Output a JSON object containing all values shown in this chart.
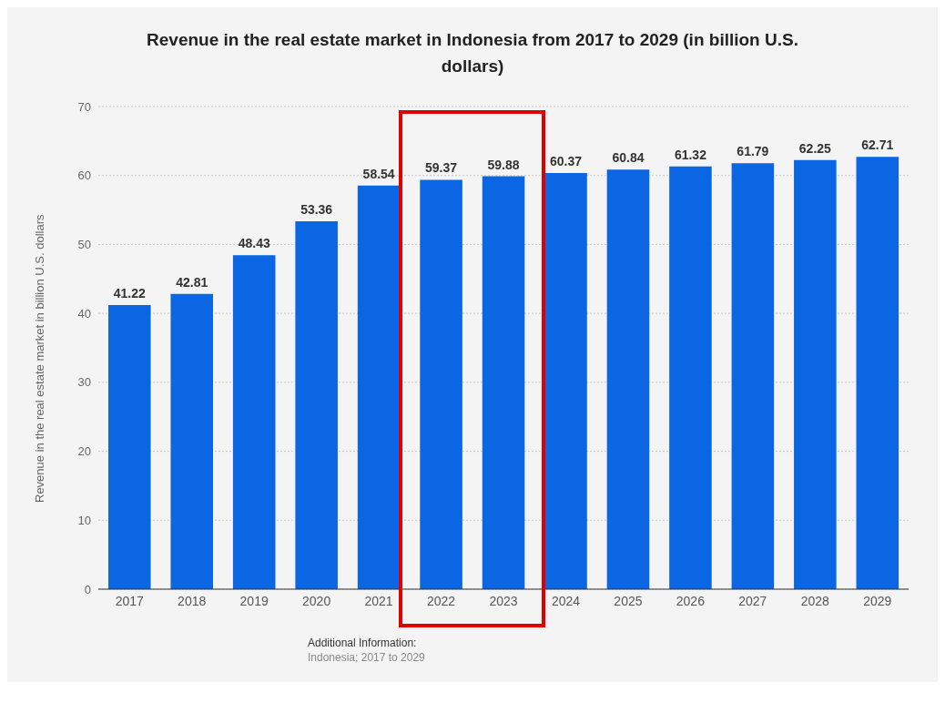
{
  "chart_data": {
    "type": "bar",
    "title": "Revenue in the real estate market in Indonesia from 2017 to 2029 (in billion U.S. dollars)",
    "ylabel": "Revenue in the real estate market in billion U.S. dollars",
    "categories": [
      "2017",
      "2018",
      "2019",
      "2020",
      "2021",
      "2022",
      "2023",
      "2024",
      "2025",
      "2026",
      "2027",
      "2028",
      "2029"
    ],
    "values": [
      41.22,
      42.81,
      48.43,
      53.36,
      58.54,
      59.37,
      59.88,
      60.37,
      60.84,
      61.32,
      61.79,
      62.25,
      62.71
    ],
    "color": "#0b66e4",
    "ylim": [
      0,
      70
    ],
    "yticks": [
      0,
      10,
      20,
      30,
      40,
      50,
      60,
      70
    ],
    "grid": "y",
    "data_labels": true,
    "annotations": [
      "Additional Information:",
      "Indonesia; 2017 to 2029"
    ]
  }
}
